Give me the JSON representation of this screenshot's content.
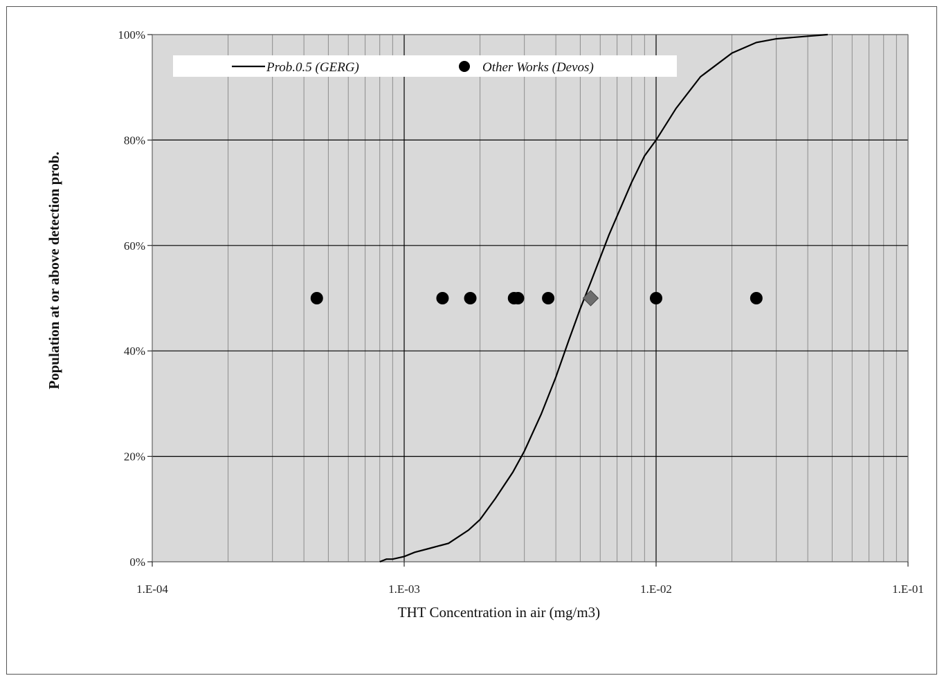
{
  "chart_data": {
    "type": "scatter",
    "xlabel": "THT Concentration in air (mg/m3)",
    "ylabel": "Population at or above detection prob.",
    "x_scale": "log",
    "xlim": [
      0.0001,
      0.1
    ],
    "ylim": [
      0,
      100
    ],
    "x_tick_labels": [
      "1.E-04",
      "1.E-03",
      "1.E-02",
      "1.E-01"
    ],
    "y_tick_labels": [
      "0%",
      "20%",
      "40%",
      "60%",
      "80%",
      "100%"
    ],
    "grid": true,
    "legend_position": "top",
    "series": [
      {
        "name": "Prob.0.5 (GERG)",
        "kind": "line",
        "color": "#000000",
        "x": [
          0.0008,
          0.00085,
          0.0009,
          0.001,
          0.0011,
          0.00125,
          0.0015,
          0.0018,
          0.002,
          0.0023,
          0.0027,
          0.003,
          0.0035,
          0.004,
          0.0045,
          0.005,
          0.0055,
          0.0065,
          0.008,
          0.009,
          0.01,
          0.012,
          0.015,
          0.02,
          0.025,
          0.03,
          0.04,
          0.048
        ],
        "y": [
          0,
          0.5,
          0.5,
          1,
          1.8,
          2.5,
          3.5,
          6,
          8,
          12,
          17,
          21,
          28,
          35,
          42,
          48,
          53,
          62,
          72,
          77,
          80,
          86,
          92,
          96.5,
          98.5,
          99.2,
          99.7,
          100
        ]
      },
      {
        "name": "Other Works (Devos)",
        "kind": "scatter",
        "color": "#000000",
        "x": [
          0.00045,
          0.00142,
          0.00183,
          0.00273,
          0.00283,
          0.00373,
          0.01,
          0.025
        ],
        "y": [
          50,
          50,
          50,
          50,
          50,
          50,
          50,
          50
        ]
      },
      {
        "kind": "marker",
        "marker": "diamond",
        "color": "#6e6e6e",
        "x": [
          0.0055
        ],
        "y": [
          50
        ]
      }
    ]
  }
}
